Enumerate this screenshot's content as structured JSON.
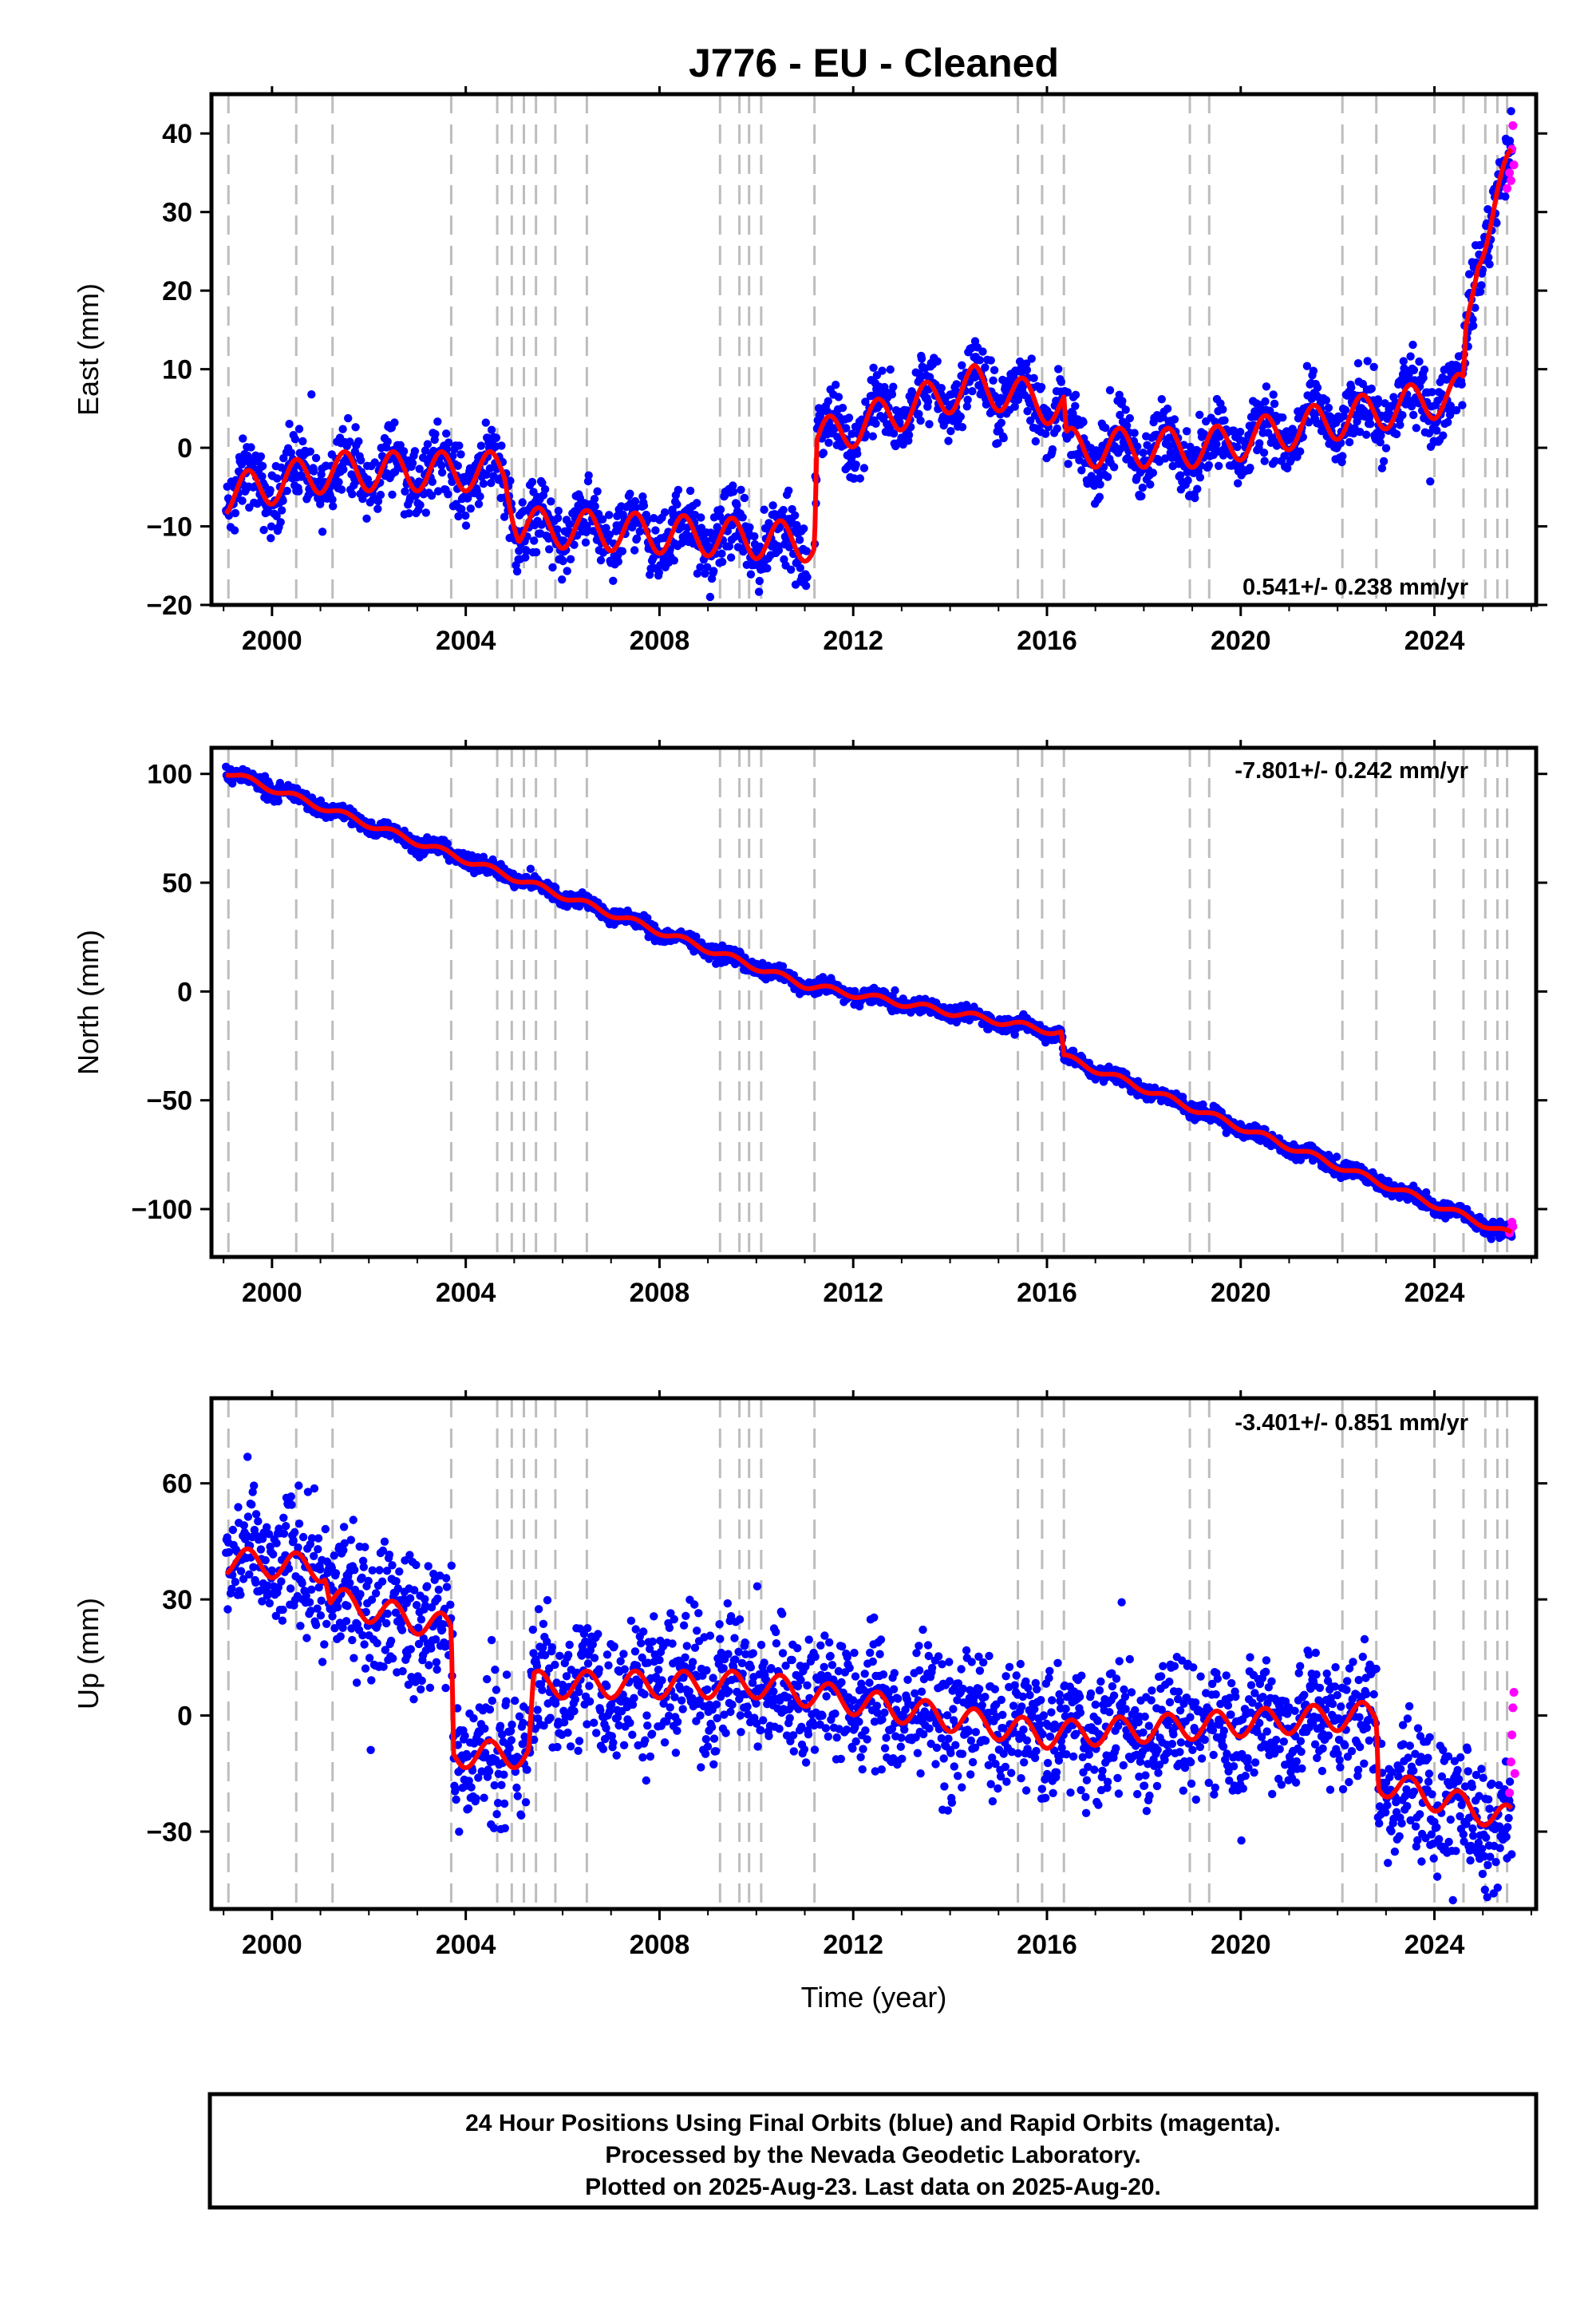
{
  "title": "J776  - EU - Cleaned",
  "x_axis_label": "Time (year)",
  "caption": [
    "24 Hour Positions Using Final Orbits (blue) and Rapid Orbits (magenta).",
    "Processed by the Nevada Geodetic Laboratory.",
    "Plotted on 2025-Aug-23. Last data on 2025-Aug-20."
  ],
  "colors": {
    "final_orbits": "#0000ff",
    "rapid_orbits": "#ff00ff",
    "model": "#ff0000",
    "event_lines": "#bdbdbd"
  },
  "chart_data": [
    {
      "type": "scatter",
      "panel": "east",
      "ylabel": "East (mm)",
      "rate_text": "0.541+/- 0.238 mm/yr",
      "xlim": [
        1998.75,
        2026.1
      ],
      "ylim": [
        -20,
        45
      ],
      "x_ticks": [
        2000,
        2004,
        2008,
        2012,
        2016,
        2020,
        2024
      ],
      "y_ticks": [
        -20,
        -10,
        0,
        10,
        20,
        30,
        40
      ],
      "y_tick_labels": [
        "−20",
        "−10",
        "0",
        "10",
        "20",
        "30",
        "40"
      ],
      "scatter_halfwidth_mm": 3.0,
      "annual_amplitude_mm": 2.5,
      "model_steps": [
        {
          "t": 1999.05,
          "v": -6
        },
        {
          "t": 2001.2,
          "v": -3
        },
        {
          "t": 2004.8,
          "v": -3
        },
        {
          "t": 2005.1,
          "v": -10
        },
        {
          "t": 2011.2,
          "v": -12
        },
        {
          "t": 2011.25,
          "v": 1
        },
        {
          "t": 2014.5,
          "v": 8
        },
        {
          "t": 2016.35,
          "v": 5
        },
        {
          "t": 2016.4,
          "v": 0
        },
        {
          "t": 2019.3,
          "v": 0
        },
        {
          "t": 2024.6,
          "v": 7
        },
        {
          "t": 2024.65,
          "v": 14
        },
        {
          "t": 2024.9,
          "v": 25
        },
        {
          "t": 2025.3,
          "v": 32
        },
        {
          "t": 2025.6,
          "v": 36
        }
      ],
      "rapid_points": [
        [
          2025.5,
          33
        ],
        [
          2025.55,
          35
        ],
        [
          2025.6,
          38
        ],
        [
          2025.62,
          41
        ],
        [
          2025.64,
          36
        ],
        [
          2025.58,
          34
        ]
      ]
    },
    {
      "type": "scatter",
      "panel": "north",
      "ylabel": "North (mm)",
      "rate_text": "-7.801+/- 0.242 mm/yr",
      "xlim": [
        1998.75,
        2026.1
      ],
      "ylim": [
        -122,
        112
      ],
      "x_ticks": [
        2000,
        2004,
        2008,
        2012,
        2016,
        2020,
        2024
      ],
      "y_ticks": [
        -100,
        -50,
        0,
        50,
        100
      ],
      "y_tick_labels": [
        "−100",
        "−50",
        "0",
        "50",
        "100"
      ],
      "scatter_halfwidth_mm": 2.5,
      "annual_amplitude_mm": 1.5,
      "model_steps": [
        {
          "t": 1999.05,
          "v": 101
        },
        {
          "t": 2003.7,
          "v": 63
        },
        {
          "t": 2011.0,
          "v": 3
        },
        {
          "t": 2016.3,
          "v": -19
        },
        {
          "t": 2016.35,
          "v": -30
        },
        {
          "t": 2025.6,
          "v": -112
        }
      ],
      "rapid_points": [
        [
          2025.55,
          -111
        ],
        [
          2025.58,
          -109
        ],
        [
          2025.6,
          -106
        ],
        [
          2025.62,
          -108
        ]
      ]
    },
    {
      "type": "scatter",
      "panel": "up",
      "ylabel": "Up (mm)",
      "rate_text": "-3.401+/- 0.851 mm/yr",
      "xlim": [
        1998.75,
        2026.1
      ],
      "ylim": [
        -50,
        82
      ],
      "x_ticks": [
        2000,
        2004,
        2008,
        2012,
        2016,
        2020,
        2024
      ],
      "y_ticks": [
        -30,
        0,
        30,
        60
      ],
      "y_tick_labels": [
        "−30",
        "0",
        "30",
        "60"
      ],
      "scatter_halfwidth_mm": 12.0,
      "annual_amplitude_mm": 3.5,
      "model_steps": [
        {
          "t": 1999.05,
          "v": 40
        },
        {
          "t": 2001.1,
          "v": 38
        },
        {
          "t": 2001.2,
          "v": 30
        },
        {
          "t": 2003.5,
          "v": 23
        },
        {
          "t": 2003.7,
          "v": 22
        },
        {
          "t": 2003.75,
          "v": -10
        },
        {
          "t": 2005.3,
          "v": -10
        },
        {
          "t": 2005.4,
          "v": 8
        },
        {
          "t": 2010.0,
          "v": 8
        },
        {
          "t": 2016.0,
          "v": -5
        },
        {
          "t": 2022.6,
          "v": 0
        },
        {
          "t": 2022.8,
          "v": 0
        },
        {
          "t": 2022.85,
          "v": -17
        },
        {
          "t": 2025.6,
          "v": -27
        }
      ],
      "rapid_points": [
        [
          2025.55,
          -20
        ],
        [
          2025.58,
          -12
        ],
        [
          2025.6,
          -5
        ],
        [
          2025.62,
          2
        ],
        [
          2025.64,
          6
        ],
        [
          2025.66,
          -15
        ]
      ]
    }
  ],
  "event_lines": [
    1999.1,
    2000.5,
    2001.25,
    2003.7,
    2004.65,
    2004.95,
    2005.2,
    2005.45,
    2005.85,
    2006.5,
    2009.25,
    2009.65,
    2009.85,
    2010.1,
    2011.2,
    2015.4,
    2015.9,
    2016.35,
    2018.95,
    2019.35,
    2022.1,
    2022.8,
    2024.0,
    2024.6,
    2025.05,
    2025.3,
    2025.5
  ]
}
